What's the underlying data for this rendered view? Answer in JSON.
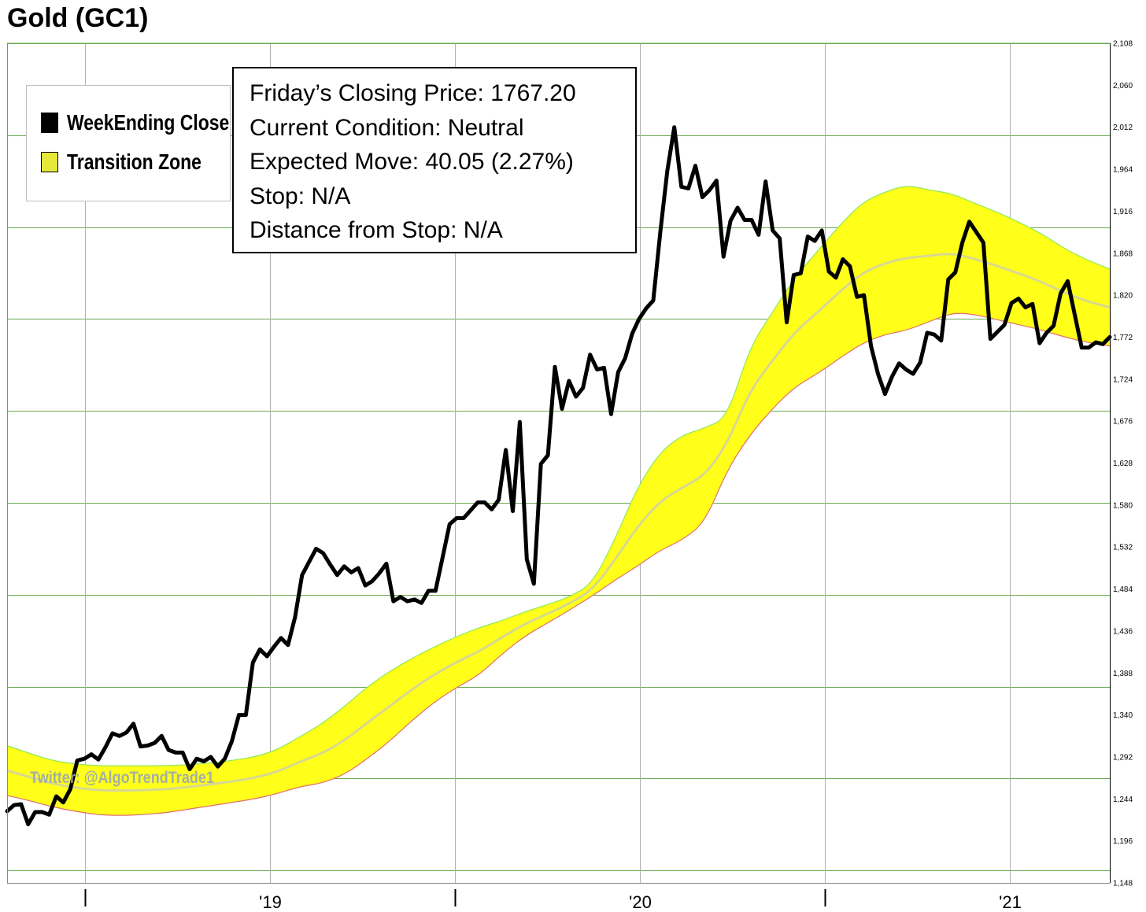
{
  "title": "Gold (GC1)",
  "legend": {
    "items": [
      {
        "label": "WeekEnding Close",
        "color": "#000000"
      },
      {
        "label": "Transition Zone",
        "color": "#e8e83a"
      }
    ]
  },
  "info": {
    "closing_price": "Friday’s Closing Price: 1767.20",
    "condition": "Current Condition: Neutral",
    "expected_move": "Expected Move: 40.05 (2.27%)",
    "stop": "Stop: N/A",
    "distance_from_stop": "Distance from Stop: N/A"
  },
  "watermark": "Twitter: @AlgoTrendTrade1",
  "colors": {
    "price_line": "#000000",
    "zone_fill": "#ffff1a",
    "zone_upper_edge": "#8ee85a",
    "zone_lower_edge": "#e07070",
    "zone_mid": "#d8d890",
    "grid": "#6aa84f",
    "vgrid": "#b0b0b0"
  },
  "chart_data": {
    "type": "line",
    "title": "Gold (GC1)",
    "ylim": [
      1148,
      2108
    ],
    "yticks": [
      "2,108",
      "2,060",
      "2,012",
      "1,964",
      "1,916",
      "1,868",
      "1,820",
      "1,772",
      "1,724",
      "1,676",
      "1,628",
      "1,580",
      "1,532",
      "1,484",
      "1,436",
      "1,388",
      "1,340",
      "1,292",
      "1,244",
      "1,196",
      "1,148"
    ],
    "xticks": [
      {
        "label": "",
        "t": 0.0
      },
      {
        "label": "'19",
        "t": 0.5
      },
      {
        "label": "",
        "t": 1.0
      },
      {
        "label": "'20",
        "t": 1.5
      },
      {
        "label": "",
        "t": 2.0
      },
      {
        "label": "'21",
        "t": 2.5
      }
    ],
    "x_range": [
      -0.21,
      2.77
    ],
    "series": [
      {
        "name": "WeekEnding Close",
        "t_start": -0.21,
        "t_end": 2.77,
        "values": [
          1230,
          1237,
          1238,
          1215,
          1229,
          1229,
          1226,
          1247,
          1240,
          1255,
          1288,
          1290,
          1295,
          1289,
          1303,
          1319,
          1316,
          1320,
          1330,
          1304,
          1305,
          1308,
          1316,
          1300,
          1297,
          1297,
          1278,
          1290,
          1287,
          1292,
          1281,
          1290,
          1310,
          1340,
          1340,
          1400,
          1415,
          1407,
          1418,
          1428,
          1420,
          1452,
          1500,
          1515,
          1530,
          1525,
          1512,
          1500,
          1510,
          1503,
          1508,
          1488,
          1493,
          1502,
          1513,
          1470,
          1475,
          1470,
          1472,
          1468,
          1482,
          1482,
          1520,
          1558,
          1565,
          1565,
          1574,
          1583,
          1583,
          1575,
          1586,
          1643,
          1573,
          1675,
          1518,
          1490,
          1627,
          1637,
          1738,
          1690,
          1722,
          1704,
          1714,
          1752,
          1735,
          1737,
          1684,
          1732,
          1748,
          1776,
          1793,
          1805,
          1814,
          1892,
          1962,
          2012,
          1944,
          1942,
          1968,
          1932,
          1940,
          1951,
          1864,
          1905,
          1920,
          1906,
          1906,
          1889,
          1950,
          1894,
          1885,
          1789,
          1843,
          1845,
          1887,
          1882,
          1894,
          1847,
          1840,
          1861,
          1853,
          1818,
          1820,
          1762,
          1730,
          1707,
          1727,
          1742,
          1735,
          1730,
          1743,
          1777,
          1775,
          1768,
          1838,
          1846,
          1880,
          1904,
          1892,
          1880,
          1770,
          1778,
          1786,
          1811,
          1816,
          1806,
          1810,
          1765,
          1777,
          1785,
          1822,
          1836,
          1798,
          1760,
          1760,
          1766,
          1764,
          1772
        ]
      },
      {
        "name": "Transition Zone upper",
        "t_start": -0.21,
        "t_end": 2.77,
        "values": [
          1305,
          1296,
          1288,
          1284,
          1282,
          1282,
          1282,
          1282,
          1283,
          1285,
          1288,
          1292,
          1300,
          1315,
          1330,
          1350,
          1372,
          1390,
          1405,
          1418,
          1430,
          1440,
          1448,
          1458,
          1466,
          1475,
          1490,
          1540,
          1600,
          1640,
          1660,
          1668,
          1680,
          1760,
          1800,
          1840,
          1870,
          1900,
          1926,
          1938,
          1946,
          1940,
          1936,
          1925,
          1915,
          1903,
          1890,
          1873,
          1860,
          1850
        ]
      },
      {
        "name": "Transition Zone lower",
        "t_start": -0.21,
        "t_end": 2.77,
        "values": [
          1248,
          1242,
          1235,
          1230,
          1226,
          1225,
          1226,
          1228,
          1232,
          1236,
          1240,
          1244,
          1250,
          1258,
          1262,
          1272,
          1290,
          1310,
          1334,
          1355,
          1372,
          1386,
          1410,
          1430,
          1445,
          1460,
          1476,
          1494,
          1510,
          1528,
          1540,
          1560,
          1620,
          1660,
          1690,
          1715,
          1730,
          1748,
          1765,
          1775,
          1780,
          1790,
          1800,
          1798,
          1792,
          1786,
          1780,
          1772,
          1766,
          1762
        ]
      }
    ]
  }
}
